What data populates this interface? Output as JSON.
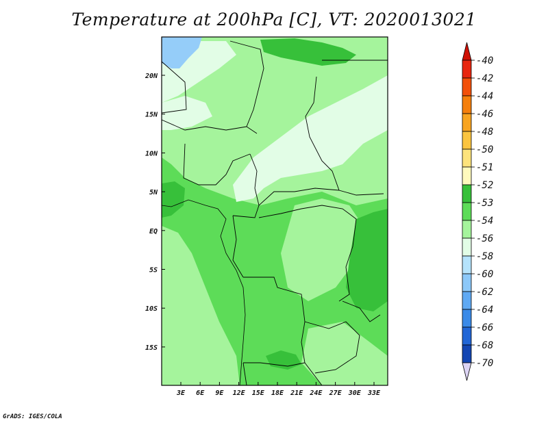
{
  "title": "Temperature at 200hPa [C], VT: 2020013021",
  "credit": "GrADS: IGES/COLA",
  "axes": {
    "lat_labels": [
      "20N",
      "15N",
      "10N",
      "5N",
      "EQ",
      "5S",
      "10S",
      "15S"
    ],
    "lon_labels": [
      "3E",
      "6E",
      "9E",
      "12E",
      "15E",
      "18E",
      "21E",
      "24E",
      "27E",
      "30E",
      "33E"
    ]
  },
  "colorbar": {
    "labels": [
      "-40",
      "-42",
      "-44",
      "-46",
      "-48",
      "-50",
      "-51",
      "-52",
      "-53",
      "-54",
      "-56",
      "-58",
      "-60",
      "-62",
      "-64",
      "-66",
      "-68",
      "-70"
    ],
    "colors": [
      "#e8260f",
      "#f2500a",
      "#f57f0c",
      "#f8a420",
      "#fbc43f",
      "#fde37c",
      "#fffabd",
      "#37c03a",
      "#5ddc58",
      "#a5f49c",
      "#e2fde6",
      "#b5e3fc",
      "#8cc8f9",
      "#5fa9f3",
      "#3a8ae8",
      "#2166d6",
      "#1346b3",
      "#08267f"
    ],
    "top_color": "#cf1004",
    "bottom_color": "#dcd4f4"
  },
  "map_colors": {
    "darkgreen": "#37c03a",
    "green": "#5ddc58",
    "lightgreen": "#a5f49c",
    "verylight": "#e2fde6",
    "lightblue": "#95cdf9",
    "border": "#000000"
  }
}
